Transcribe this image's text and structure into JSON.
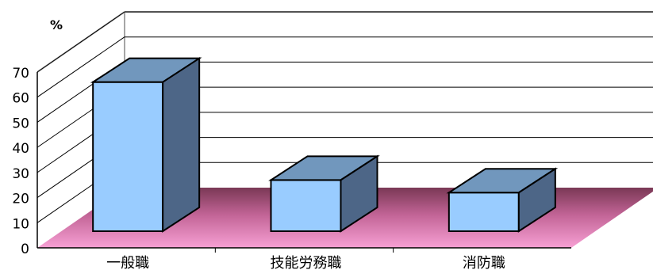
{
  "chart_data": {
    "type": "bar",
    "style": "3d-column",
    "categories": [
      "一般職",
      "技能労務職",
      "消防職"
    ],
    "values": [
      66,
      27,
      22
    ],
    "ylabel": "%",
    "xlabel": "",
    "ylim": [
      0,
      70
    ],
    "yticks": [
      0,
      10,
      20,
      30,
      40,
      50,
      60,
      70
    ],
    "grid": true,
    "legend": "none",
    "colors": {
      "bar_front": "#99CCFF",
      "bar_top": "#7197BD",
      "bar_side": "#4D6687",
      "floor_light": "#F7A0D4",
      "floor_dark": "#7A3855",
      "wall_line": "#A6A6A6",
      "grid_line": "#000000"
    }
  }
}
